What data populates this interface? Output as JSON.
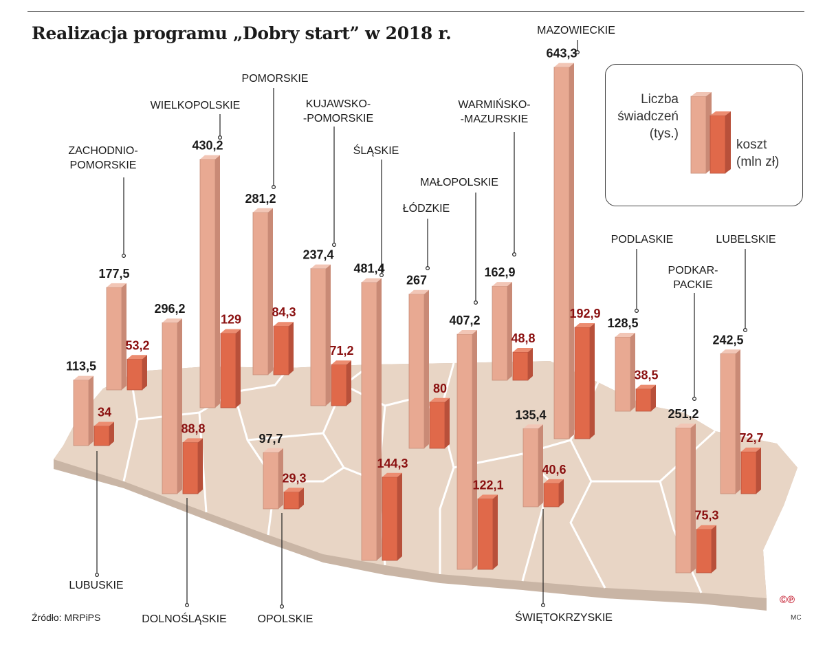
{
  "title": "Realizacja programu „Dobry start” w 2018 r.",
  "legend": {
    "count_label": [
      "Liczba",
      "świadczeń",
      "(tys.)"
    ],
    "cost_label": [
      "koszt",
      "(mln zł)"
    ]
  },
  "source": "Źródło: MRPiPS",
  "copyright_mark": "©℗",
  "author": "MC",
  "colors": {
    "count_bar": "#e8a992",
    "cost_bar": "#e0694a",
    "map_fill": "#e8d5c5",
    "cost_value_text": "#8a1010"
  },
  "chart_data": {
    "type": "bar",
    "title": "Realizacja programu „Dobry start” w 2018 r.",
    "series": [
      {
        "name": "Liczba świadczeń (tys.)",
        "values": [
          113.5,
          177.5,
          296.2,
          430.2,
          281.2,
          97.7,
          237.4,
          481.4,
          267,
          407.2,
          162.9,
          135.4,
          643.3,
          128.5,
          251.2,
          242.5
        ]
      },
      {
        "name": "koszt (mln zł)",
        "values": [
          34,
          53.2,
          88.8,
          129,
          84.3,
          29.3,
          71.2,
          144.3,
          80,
          122.1,
          48.8,
          40.6,
          192.9,
          38.5,
          75.3,
          72.7
        ]
      }
    ],
    "regions": [
      {
        "name": "LUBUSKIE",
        "count": 113.5,
        "cost": 34,
        "count_label": "113,5",
        "cost_label": "34"
      },
      {
        "name": "ZACHODNIO-\nPOMORSKIE",
        "count": 177.5,
        "cost": 53.2,
        "count_label": "177,5",
        "cost_label": "53,2"
      },
      {
        "name": "DOLNOŚLĄSKIE",
        "count": 296.2,
        "cost": 88.8,
        "count_label": "296,2",
        "cost_label": "88,8"
      },
      {
        "name": "WIELKOPOLSKIE",
        "count": 430.2,
        "cost": 129,
        "count_label": "430,2",
        "cost_label": "129"
      },
      {
        "name": "POMORSKIE",
        "count": 281.2,
        "cost": 84.3,
        "count_label": "281,2",
        "cost_label": "84,3"
      },
      {
        "name": "OPOLSKIE",
        "count": 97.7,
        "cost": 29.3,
        "count_label": "97,7",
        "cost_label": "29,3"
      },
      {
        "name": "KUJAWSKO-\n-POMORSKIE",
        "count": 237.4,
        "cost": 71.2,
        "count_label": "237,4",
        "cost_label": "71,2"
      },
      {
        "name": "ŚLĄSKIE",
        "count": 481.4,
        "cost": 144.3,
        "count_label": "481,4",
        "cost_label": "144,3"
      },
      {
        "name": "ŁÓDZKIE",
        "count": 267,
        "cost": 80,
        "count_label": "267",
        "cost_label": "80"
      },
      {
        "name": "MAŁOPOLSKIE",
        "count": 407.2,
        "cost": 122.1,
        "count_label": "407,2",
        "cost_label": "122,1"
      },
      {
        "name": "WARMIŃSKO-\n-MAZURSKIE",
        "count": 162.9,
        "cost": 48.8,
        "count_label": "162,9",
        "cost_label": "48,8"
      },
      {
        "name": "ŚWIĘTOKRZYSKIE",
        "count": 135.4,
        "cost": 40.6,
        "count_label": "135,4",
        "cost_label": "40,6"
      },
      {
        "name": "MAZOWIECKIE",
        "count": 643.3,
        "cost": 192.9,
        "count_label": "643,3",
        "cost_label": "192,9"
      },
      {
        "name": "PODLASKIE",
        "count": 128.5,
        "cost": 38.5,
        "count_label": "128,5",
        "cost_label": "38,5"
      },
      {
        "name": "PODKAR-\nPACKIE",
        "count": 251.2,
        "cost": 75.3,
        "count_label": "251,2",
        "cost_label": "75,3"
      },
      {
        "name": "LUBELSKIE",
        "count": 242.5,
        "cost": 72.7,
        "count_label": "242,5",
        "cost_label": "72,7"
      }
    ]
  }
}
